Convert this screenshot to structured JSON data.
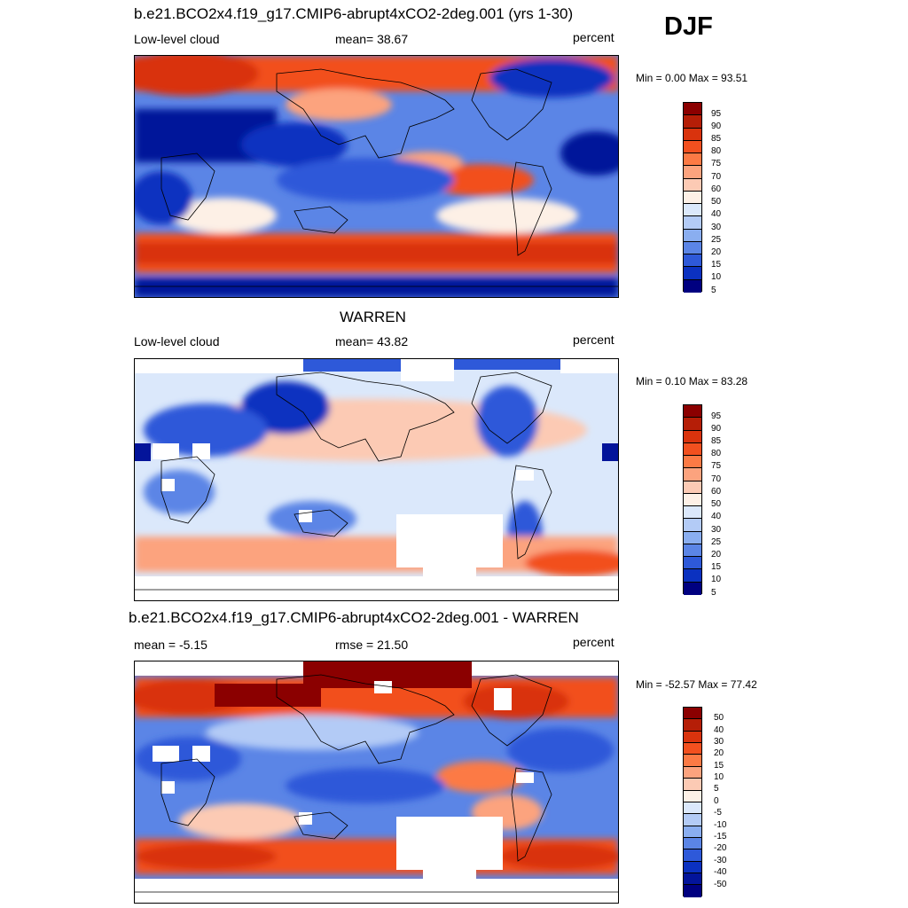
{
  "season": "DJF",
  "panels": [
    {
      "title": "b.e21.BCO2x4.f19_g17.CMIP6-abrupt4xCO2-2deg.001 (yrs 1-30)",
      "left_label": "Low-level cloud",
      "mid_label": "mean=  38.67",
      "right_label": "percent",
      "minmax": "Min =   0.00 Max =  93.51",
      "colorbar_labels": [
        "95",
        "90",
        "85",
        "80",
        "75",
        "70",
        "60",
        "50",
        "40",
        "30",
        "25",
        "20",
        "15",
        "10",
        "5"
      ],
      "kind": "model"
    },
    {
      "title": "WARREN",
      "left_label": "Low-level cloud",
      "mid_label": "mean=  43.82",
      "right_label": "percent",
      "minmax": "Min =   0.10 Max =  83.28",
      "colorbar_labels": [
        "95",
        "90",
        "85",
        "80",
        "75",
        "70",
        "60",
        "50",
        "40",
        "30",
        "25",
        "20",
        "15",
        "10",
        "5"
      ],
      "kind": "obs"
    },
    {
      "title": "b.e21.BCO2x4.f19_g17.CMIP6-abrupt4xCO2-2deg.001 - WARREN",
      "left_label": "mean =  -5.15",
      "mid_label": "rmse =  21.50",
      "right_label": "percent",
      "minmax": "Min = -52.57 Max =  77.42",
      "colorbar_labels": [
        "50",
        "40",
        "30",
        "20",
        "15",
        "10",
        "5",
        "0",
        "-5",
        "-10",
        "-15",
        "-20",
        "-30",
        "-40",
        "-50"
      ],
      "kind": "diff"
    }
  ],
  "colors": {
    "scale": [
      "#8b0000",
      "#b51e07",
      "#d9330d",
      "#f2501f",
      "#fc7a45",
      "#fca37e",
      "#fccab4",
      "#fdf0e6",
      "#dbe8fb",
      "#b3cbf6",
      "#8aaef0",
      "#5b85e6",
      "#2e59d9",
      "#0b31c0",
      "#03149a",
      "#000080"
    ]
  }
}
